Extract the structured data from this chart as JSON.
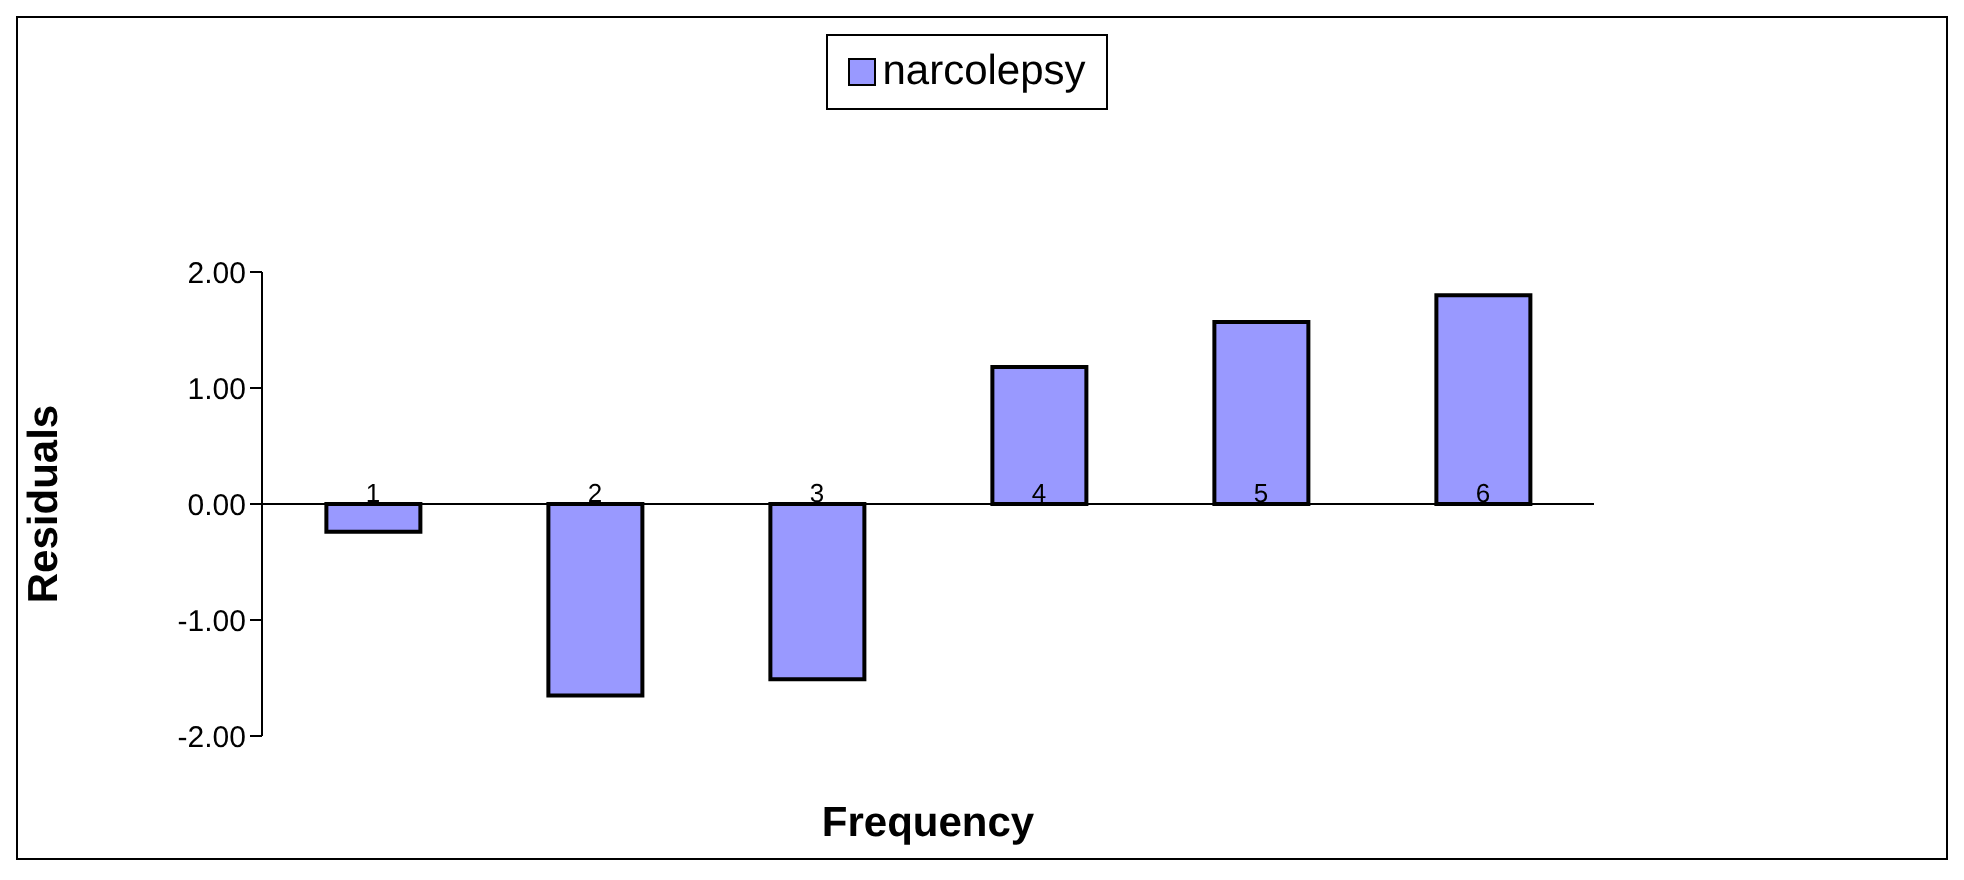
{
  "chart_data": {
    "type": "bar",
    "categories": [
      "1",
      "2",
      "3",
      "4",
      "5",
      "6"
    ],
    "series": [
      {
        "name": "narcolepsy",
        "color": "#9999ff",
        "values": [
          -0.24,
          -1.65,
          -1.51,
          1.18,
          1.57,
          1.8
        ]
      }
    ],
    "xlabel": "Frequency",
    "ylabel": "Residuals",
    "ylim": [
      -2,
      2
    ],
    "yticks": [
      {
        "value": -2,
        "label": "-2.00"
      },
      {
        "value": -1,
        "label": "-1.00"
      },
      {
        "value": 0,
        "label": "0.00"
      },
      {
        "value": 1,
        "label": "1.00"
      },
      {
        "value": 2,
        "label": "2.00"
      }
    ],
    "grid": false,
    "legend": "top"
  }
}
